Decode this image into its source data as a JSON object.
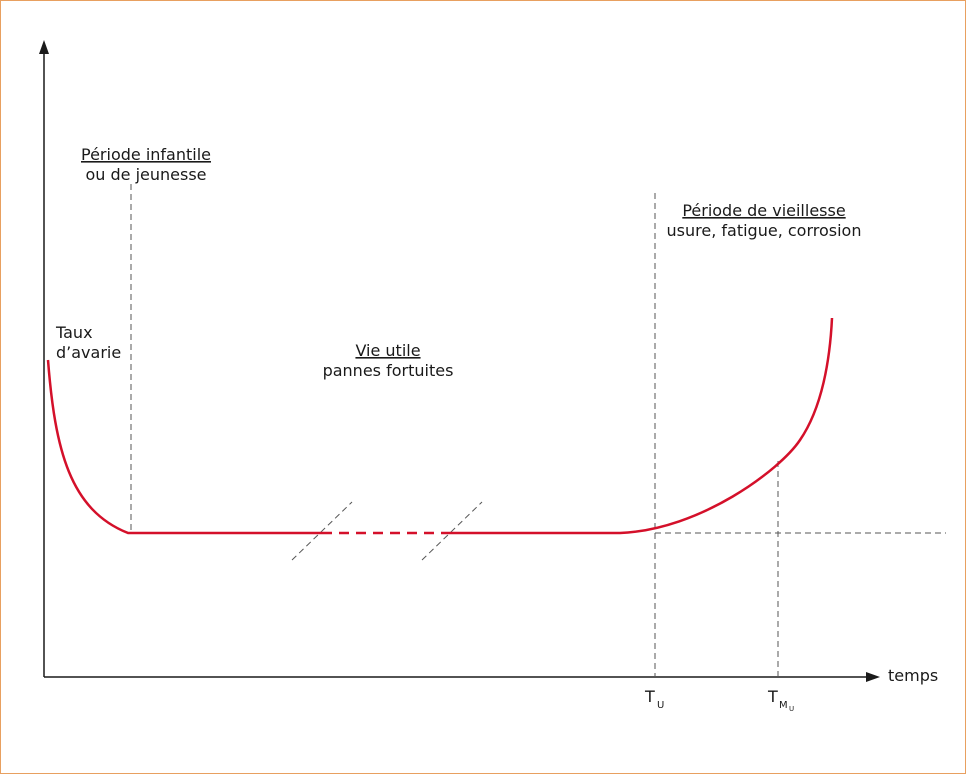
{
  "labels": {
    "y_axis": [
      "Taux",
      "d’avarie"
    ],
    "x_axis": "temps",
    "infant": {
      "title": "Période infantile",
      "line2": "ou de jeunesse"
    },
    "useful": {
      "title": "Vie utile",
      "line2": "pannes fortuites"
    },
    "aging": {
      "title": "Période de vieillesse",
      "line2": "usure, fatigue, corrosion"
    },
    "tick_tu": {
      "main": "T",
      "sub": "U"
    },
    "tick_tmu": {
      "main": "T",
      "sub": "M",
      "subsub": "U"
    }
  },
  "colors": {
    "curve": "#d4102a",
    "axis": "#1a1a1a",
    "dash": "#555555",
    "border": "#e8a060"
  }
}
